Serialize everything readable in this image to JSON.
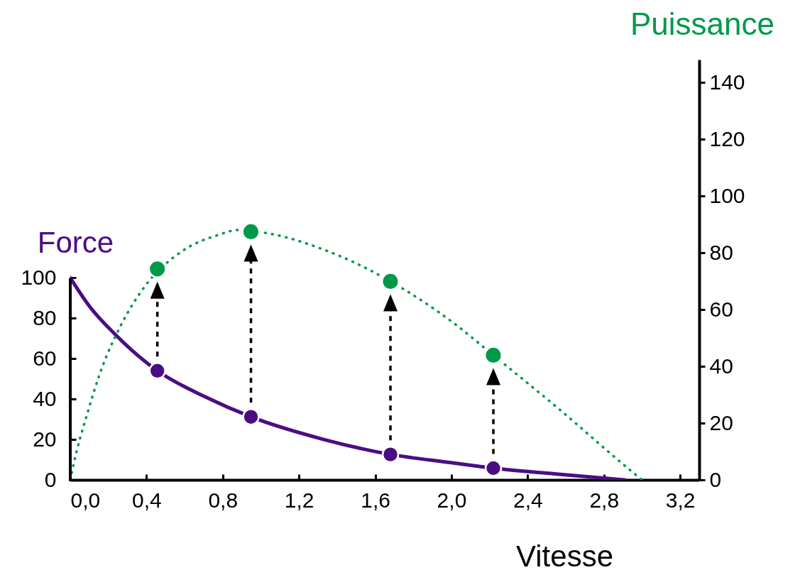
{
  "chart_data": {
    "type": "line",
    "xlabel": "Vitesse",
    "ylabel": "Force",
    "y2label": "Puissance",
    "xlim": [
      0,
      3.3
    ],
    "xticks": [
      {
        "value": 0,
        "label": "0,0"
      },
      {
        "value": 0.4,
        "label": "0,4"
      },
      {
        "value": 0.8,
        "label": "0,8"
      },
      {
        "value": 1.2,
        "label": "1,2"
      },
      {
        "value": 1.6,
        "label": "1,6"
      },
      {
        "value": 2.0,
        "label": "2,0"
      },
      {
        "value": 2.4,
        "label": "2,4"
      },
      {
        "value": 2.8,
        "label": "2,8"
      },
      {
        "value": 3.2,
        "label": "3,2"
      }
    ],
    "ylim": [
      0,
      208
    ],
    "yticks": [
      0,
      20,
      40,
      60,
      80,
      100
    ],
    "y2lim": [
      0,
      148
    ],
    "y2ticks": [
      0,
      20,
      40,
      60,
      80,
      100,
      120,
      140
    ],
    "grid": false,
    "series": [
      {
        "type": "line",
        "color": "#4b0e82",
        "line_style": "solid",
        "x": [
          0,
          0.1,
          0.24,
          0.457,
          0.71,
          0.948,
          1.33,
          1.68,
          2.0,
          2.22,
          2.54,
          2.91
        ],
        "values": [
          100,
          86,
          71.6,
          54,
          41,
          31.2,
          20,
          12.6,
          8.5,
          5.8,
          3,
          0
        ]
      },
      {
        "type": "scatter",
        "color": "#4b0e82",
        "x": [
          0.457,
          0.948,
          1.68,
          2.22
        ],
        "values": [
          54,
          31.2,
          12.6,
          5.8
        ]
      },
      {
        "type": "line",
        "axis": "y2",
        "color": "#00994a",
        "line_style": "dotted",
        "x": [
          0,
          0.015,
          0.09,
          0.153,
          0.27,
          0.383,
          0.588,
          0.774,
          0.88,
          1.07,
          1.333,
          1.47,
          1.68,
          2.02,
          2.22,
          2.56,
          2.94,
          3.0
        ],
        "values": [
          0,
          4.8,
          23.5,
          37,
          55,
          67.4,
          80.6,
          86.2,
          88,
          86.4,
          81,
          77.2,
          69.9,
          54.8,
          43.9,
          25.2,
          3.3,
          0
        ]
      },
      {
        "type": "scatter",
        "axis": "y2",
        "color": "#00994a",
        "x": [
          0.457,
          0.948,
          1.68,
          2.22
        ],
        "values": [
          74.3,
          87.4,
          69.9,
          43.9
        ]
      }
    ]
  }
}
